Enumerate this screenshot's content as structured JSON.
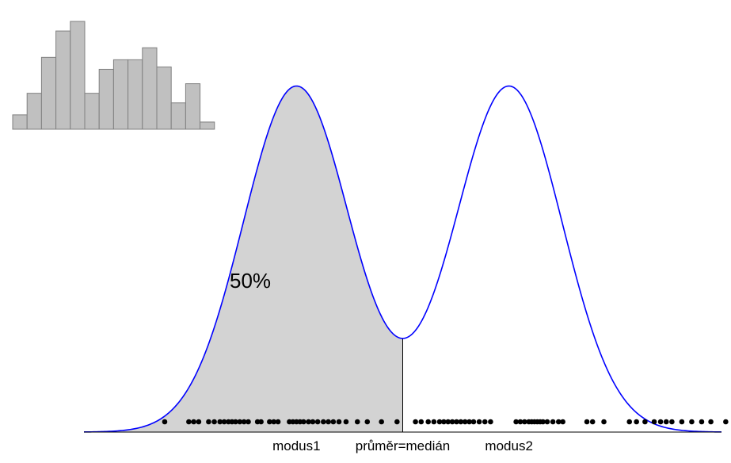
{
  "chart_data": [
    {
      "type": "area",
      "description_role": "bimodal density curve with left half shaded",
      "x_range": [
        -4.5,
        4.5
      ],
      "y_range": [
        0,
        1.04
      ],
      "components": [
        {
          "mean": -1.5,
          "sd": 0.75,
          "weight": 0.5
        },
        {
          "mean": 1.5,
          "sd": 0.75,
          "weight": 0.5
        }
      ],
      "shaded_region": {
        "from": -4.5,
        "to": 0,
        "label": "50%",
        "share": 0.5
      },
      "curve_color": "#0000ff",
      "shade_color": "#d3d3d3",
      "tick_labels": [
        {
          "x": -1.5,
          "text": "modus1"
        },
        {
          "x": 0,
          "text": "průměr=medián"
        },
        {
          "x": 1.5,
          "text": "modus2"
        }
      ],
      "rug_points": [
        -3.36,
        -3.02,
        -2.95,
        -2.88,
        -2.74,
        -2.66,
        -2.58,
        -2.52,
        -2.46,
        -2.41,
        -2.36,
        -2.3,
        -2.24,
        -2.18,
        -2.05,
        -2.0,
        -1.88,
        -1.82,
        -1.76,
        -1.6,
        -1.55,
        -1.5,
        -1.45,
        -1.4,
        -1.33,
        -1.27,
        -1.2,
        -1.12,
        -1.05,
        -0.98,
        -0.9,
        -0.8,
        -0.64,
        -0.5,
        -0.3,
        -0.08,
        0.18,
        0.26,
        0.36,
        0.44,
        0.52,
        0.58,
        0.64,
        0.7,
        0.76,
        0.82,
        0.88,
        0.94,
        1.0,
        1.08,
        1.16,
        1.24,
        1.6,
        1.66,
        1.72,
        1.78,
        1.82,
        1.86,
        1.9,
        1.94,
        1.98,
        2.04,
        2.12,
        2.2,
        2.26,
        2.6,
        2.68,
        2.84,
        3.2,
        3.3,
        3.42,
        3.55,
        3.64,
        3.72,
        3.8,
        3.94,
        4.08,
        4.22,
        4.35,
        4.56
      ]
    },
    {
      "type": "bar",
      "description_role": "small histogram inset",
      "values": [
        0.12,
        0.3,
        0.6,
        0.82,
        0.9,
        0.3,
        0.5,
        0.58,
        0.58,
        0.68,
        0.52,
        0.22,
        0.38,
        0.06
      ],
      "ylim": [
        0,
        1
      ],
      "bar_color": "#c0c0c0",
      "edge_color": "#808080"
    }
  ]
}
